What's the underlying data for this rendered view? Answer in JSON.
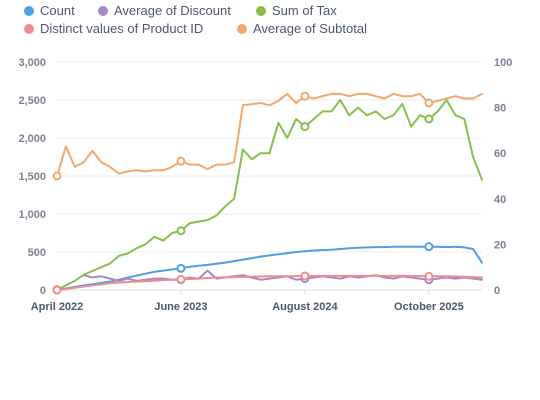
{
  "legend": [
    {
      "name": "Count",
      "color": "#509ee3"
    },
    {
      "name": "Average of Discount",
      "color": "#a989c5"
    },
    {
      "name": "Sum of Tax",
      "color": "#88bf4d"
    },
    {
      "name": "Distinct values of Product ID",
      "color": "#ef8c8c"
    },
    {
      "name": "Average of Subtotal",
      "color": "#f2a86f"
    }
  ],
  "chart_data": {
    "type": "line",
    "x_ticks": [
      "April 2022",
      "June 2023",
      "August 2024",
      "October 2025"
    ],
    "x_tick_month_index": [
      0,
      14,
      28,
      42
    ],
    "y_left": {
      "ticks": [
        "0",
        "500",
        "1,000",
        "1,500",
        "2,000",
        "2,500",
        "3,000"
      ],
      "ylim": [
        0,
        3000
      ]
    },
    "y_right": {
      "ticks": [
        "0",
        "20",
        "40",
        "60",
        "80",
        "100"
      ],
      "ylim": [
        0,
        100
      ]
    },
    "x_range": [
      0,
      48
    ],
    "series": [
      {
        "name": "Count",
        "axis": "left",
        "color": "#509ee3",
        "x": [
          0,
          1,
          2,
          3,
          4,
          5,
          6,
          7,
          8,
          9,
          10,
          11,
          12,
          13,
          14,
          15,
          16,
          17,
          18,
          19,
          20,
          21,
          22,
          23,
          24,
          25,
          26,
          27,
          28,
          29,
          30,
          31,
          32,
          33,
          34,
          35,
          36,
          37,
          38,
          39,
          40,
          41,
          42,
          43,
          44,
          45,
          46,
          47,
          48
        ],
        "values": [
          5,
          20,
          40,
          60,
          75,
          95,
          110,
          135,
          165,
          190,
          215,
          240,
          255,
          270,
          285,
          305,
          320,
          330,
          345,
          360,
          380,
          400,
          420,
          440,
          455,
          470,
          485,
          500,
          510,
          520,
          525,
          530,
          540,
          550,
          555,
          560,
          565,
          565,
          570,
          570,
          570,
          570,
          570,
          570,
          565,
          570,
          560,
          540,
          360
        ],
        "markers": [
          0,
          14,
          42
        ]
      },
      {
        "name": "Average of Discount",
        "axis": "right",
        "color": "#a989c5",
        "x": [
          3,
          4,
          5,
          6,
          7,
          8,
          9,
          10,
          11,
          12,
          13,
          14,
          15,
          16,
          17,
          18,
          19,
          20,
          21,
          22,
          23,
          24,
          25,
          26,
          27,
          28,
          29,
          30,
          31,
          32,
          33,
          34,
          35,
          36,
          37,
          38,
          39,
          40,
          41,
          42,
          43,
          44,
          45,
          46,
          47,
          48
        ],
        "values": [
          6.5,
          5.5,
          6,
          5,
          4,
          5,
          4,
          4.5,
          5,
          5,
          4.5,
          4.5,
          5.5,
          5,
          8.5,
          5,
          5.5,
          6,
          6.5,
          5.5,
          4.5,
          5,
          5.5,
          6,
          4.5,
          5,
          5.5,
          6,
          5.5,
          5,
          6,
          5.5,
          6,
          6.5,
          5.5,
          5,
          6,
          5.5,
          5,
          4.5,
          5,
          5.5,
          5,
          5.5,
          5,
          4.5
        ],
        "markers": [
          14,
          28,
          42
        ]
      },
      {
        "name": "Sum of Tax",
        "axis": "left",
        "color": "#88bf4d",
        "x": [
          0,
          1,
          2,
          3,
          4,
          5,
          6,
          7,
          8,
          9,
          10,
          11,
          12,
          13,
          14,
          15,
          16,
          17,
          18,
          19,
          20,
          21,
          22,
          23,
          24,
          25,
          26,
          27,
          28,
          29,
          30,
          31,
          32,
          33,
          34,
          35,
          36,
          37,
          38,
          39,
          40,
          41,
          42,
          43,
          44,
          45,
          46,
          47,
          48
        ],
        "values": [
          0,
          60,
          120,
          200,
          250,
          300,
          350,
          450,
          480,
          550,
          600,
          700,
          650,
          750,
          780,
          880,
          900,
          920,
          980,
          1100,
          1200,
          1850,
          1720,
          1800,
          1800,
          2200,
          2000,
          2250,
          2150,
          2250,
          2350,
          2350,
          2500,
          2300,
          2400,
          2300,
          2350,
          2250,
          2300,
          2450,
          2150,
          2300,
          2250,
          2350,
          2500,
          2300,
          2250,
          1750,
          1450
        ],
        "markers": [
          0,
          14,
          28,
          42
        ]
      },
      {
        "name": "Distinct values of Product ID",
        "axis": "left",
        "color": "#ef8c8c",
        "x": [
          0,
          2,
          4,
          6,
          8,
          10,
          12,
          14,
          16,
          18,
          20,
          22,
          24,
          26,
          28,
          30,
          32,
          34,
          36,
          38,
          40,
          42,
          44,
          46,
          48
        ],
        "values": [
          0,
          30,
          60,
          90,
          105,
          115,
          130,
          140,
          150,
          165,
          170,
          175,
          180,
          180,
          185,
          185,
          185,
          185,
          185,
          185,
          185,
          180,
          180,
          175,
          165
        ],
        "markers": [
          0,
          14,
          28,
          42
        ]
      },
      {
        "name": "Average of Subtotal",
        "axis": "right",
        "color": "#f2a86f",
        "x": [
          0,
          1,
          2,
          3,
          4,
          5,
          6,
          7,
          8,
          9,
          10,
          11,
          12,
          13,
          14,
          15,
          16,
          17,
          18,
          19,
          20,
          21,
          22,
          23,
          24,
          25,
          26,
          27,
          28,
          29,
          30,
          31,
          32,
          33,
          34,
          35,
          36,
          37,
          38,
          39,
          40,
          41,
          42,
          43,
          44,
          45,
          46,
          47,
          48
        ],
        "values": [
          50,
          63,
          54,
          56,
          61,
          56,
          54,
          51,
          52,
          52.5,
          52,
          52.5,
          52.5,
          54,
          56.5,
          55,
          55,
          53,
          55,
          55,
          56,
          81,
          81.5,
          82,
          81,
          83,
          86,
          82,
          85,
          84,
          85,
          86,
          86,
          85,
          86,
          86,
          85,
          84,
          86,
          85,
          85,
          86,
          82,
          83,
          84,
          85,
          84,
          84,
          86
        ],
        "markers": [
          0,
          14,
          28,
          42
        ]
      }
    ]
  }
}
